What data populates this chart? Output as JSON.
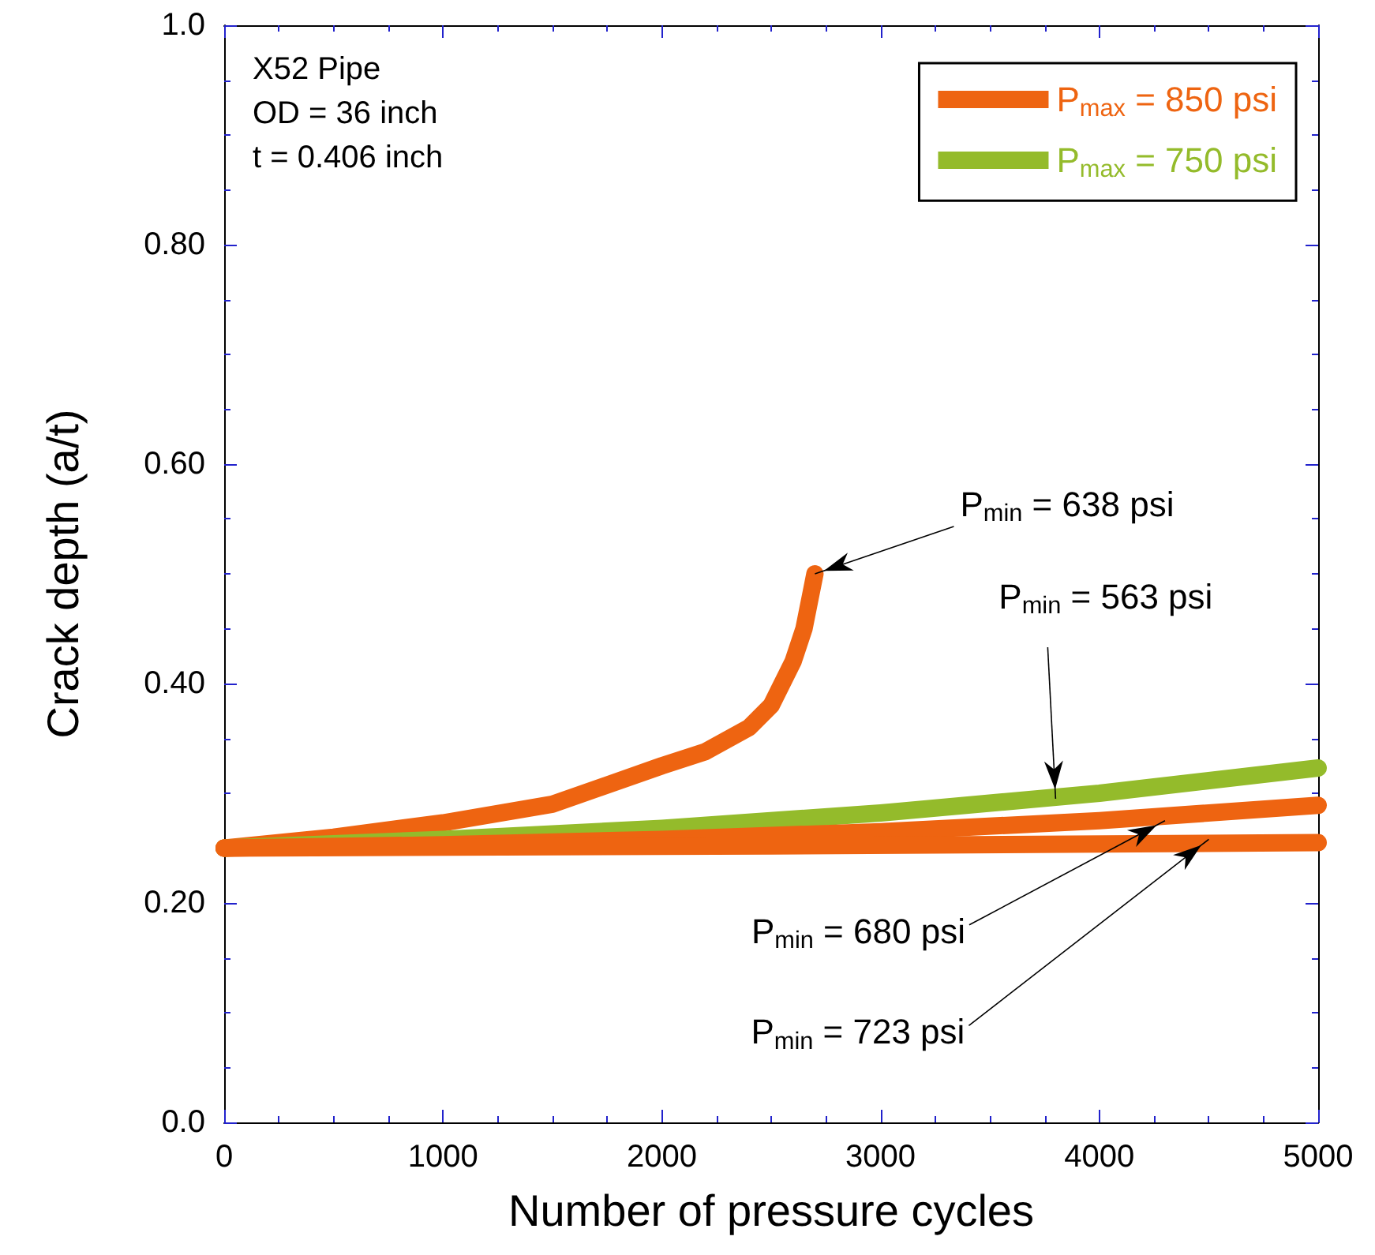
{
  "chart_data": {
    "type": "line",
    "xlabel": "Number of pressure cycles",
    "ylabel": "Crack depth (a/t)",
    "xlim": [
      0,
      5000
    ],
    "xticks": [
      0,
      1000,
      2000,
      3000,
      4000,
      5000
    ],
    "ylim": [
      0,
      1
    ],
    "yticks": [
      {
        "value": 0,
        "label": "0.0"
      },
      {
        "value": 0.2,
        "label": "0.20"
      },
      {
        "value": 0.4,
        "label": "0.40"
      },
      {
        "value": 0.6,
        "label": "0.60"
      },
      {
        "value": 0.8,
        "label": "0.80"
      },
      {
        "value": 1,
        "label": "1.0"
      }
    ],
    "series": [
      {
        "name": "P$_{max}$ = 850 psi",
        "color": "#ee6411",
        "x": [
          0,
          500,
          1000,
          1500,
          2000,
          2200,
          2400,
          2500,
          2600,
          2650,
          2700
        ],
        "values": [
          0.25,
          0.26,
          0.273,
          0.29,
          0.325,
          0.338,
          0.36,
          0.38,
          0.42,
          0.45,
          0.5
        ]
      },
      {
        "name": "P$_{max}$ = 750 psi",
        "color": "#94bb2b",
        "x": [
          0,
          1000,
          2000,
          3000,
          4000,
          5000
        ],
        "values": [
          0.25,
          0.258,
          0.268,
          0.282,
          0.3,
          0.323
        ]
      },
      {
        "color": "#ee6411",
        "x": [
          0,
          1000,
          2000,
          3000,
          4000,
          5000
        ],
        "values": [
          0.25,
          0.253,
          0.258,
          0.265,
          0.275,
          0.289
        ]
      },
      {
        "color": "#ee6411",
        "x": [
          0,
          2500,
          5000
        ],
        "values": [
          0.25,
          0.252,
          0.255
        ]
      }
    ],
    "legend": "top right",
    "grid": false,
    "annotations": [
      "X52 Pipe",
      "OD = 36 inch",
      "t = 0.406 inch",
      {
        "text": "P$_{min}$ = 638 psi",
        "x": 2700,
        "y": 0.5
      },
      {
        "text": "P$_{min}$ = 563 psi",
        "x": 3800,
        "y": 0.295
      },
      {
        "text": "P$_{min}$ = 680 psi",
        "x": 4300,
        "y": 0.275
      },
      {
        "text": "P$_{min}$ = 723 psi",
        "x": 4500,
        "y": 0.258
      }
    ]
  }
}
